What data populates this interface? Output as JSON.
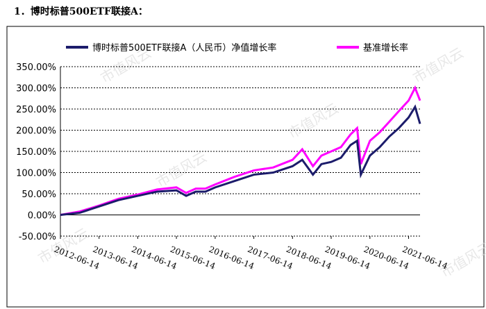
{
  "heading": "1．博时标普500ETF联接A：",
  "chart_data": {
    "type": "line",
    "watermark": "市值风云",
    "x": [
      "2012-06-14",
      "2012-12-14",
      "2013-06-14",
      "2013-12-14",
      "2014-06-14",
      "2014-12-14",
      "2015-06-14",
      "2015-09-14",
      "2015-12-14",
      "2016-03-14",
      "2016-06-14",
      "2016-12-14",
      "2017-06-14",
      "2017-12-14",
      "2018-06-14",
      "2018-09-14",
      "2018-12-24",
      "2019-03-14",
      "2019-06-14",
      "2019-09-14",
      "2019-12-14",
      "2020-02-14",
      "2020-03-20",
      "2020-06-14",
      "2020-09-14",
      "2020-12-14",
      "2021-03-14",
      "2021-06-14",
      "2021-08-14",
      "2021-09-30"
    ],
    "series": [
      {
        "name": "博时标普500ETF联接A（人民币）净值增长率",
        "color": "#1c1c6b",
        "values": [
          0,
          5,
          20,
          35,
          45,
          55,
          58,
          45,
          55,
          55,
          65,
          80,
          95,
          100,
          115,
          130,
          95,
          120,
          125,
          135,
          165,
          175,
          95,
          140,
          160,
          185,
          205,
          230,
          255,
          215
        ]
      },
      {
        "name": "基准增长率",
        "color": "#ff00ff",
        "values": [
          0,
          8,
          22,
          38,
          48,
          60,
          65,
          52,
          62,
          62,
          72,
          90,
          105,
          112,
          130,
          155,
          115,
          140,
          150,
          160,
          190,
          205,
          120,
          175,
          195,
          220,
          245,
          270,
          300,
          270
        ]
      }
    ],
    "xlim": [
      "2012-06-14",
      "2021-09-30"
    ],
    "xticks": [
      "2012-06-14",
      "2013-06-14",
      "2014-06-14",
      "2015-06-14",
      "2016-06-14",
      "2017-06-14",
      "2018-06-14",
      "2019-06-14",
      "2020-06-14",
      "2021-06-14"
    ],
    "ylim": [
      -50,
      350
    ],
    "yticks": [
      {
        "value": -50,
        "label": "-50.00%"
      },
      {
        "value": 0,
        "label": "0.00%"
      },
      {
        "value": 50,
        "label": "50.00%"
      },
      {
        "value": 100,
        "label": "100.00%"
      },
      {
        "value": 150,
        "label": "150.00%"
      },
      {
        "value": 200,
        "label": "200.00%"
      },
      {
        "value": 250,
        "label": "250.00%"
      },
      {
        "value": 300,
        "label": "300.00%"
      },
      {
        "value": 350,
        "label": "350.00%"
      }
    ],
    "grid": true
  }
}
